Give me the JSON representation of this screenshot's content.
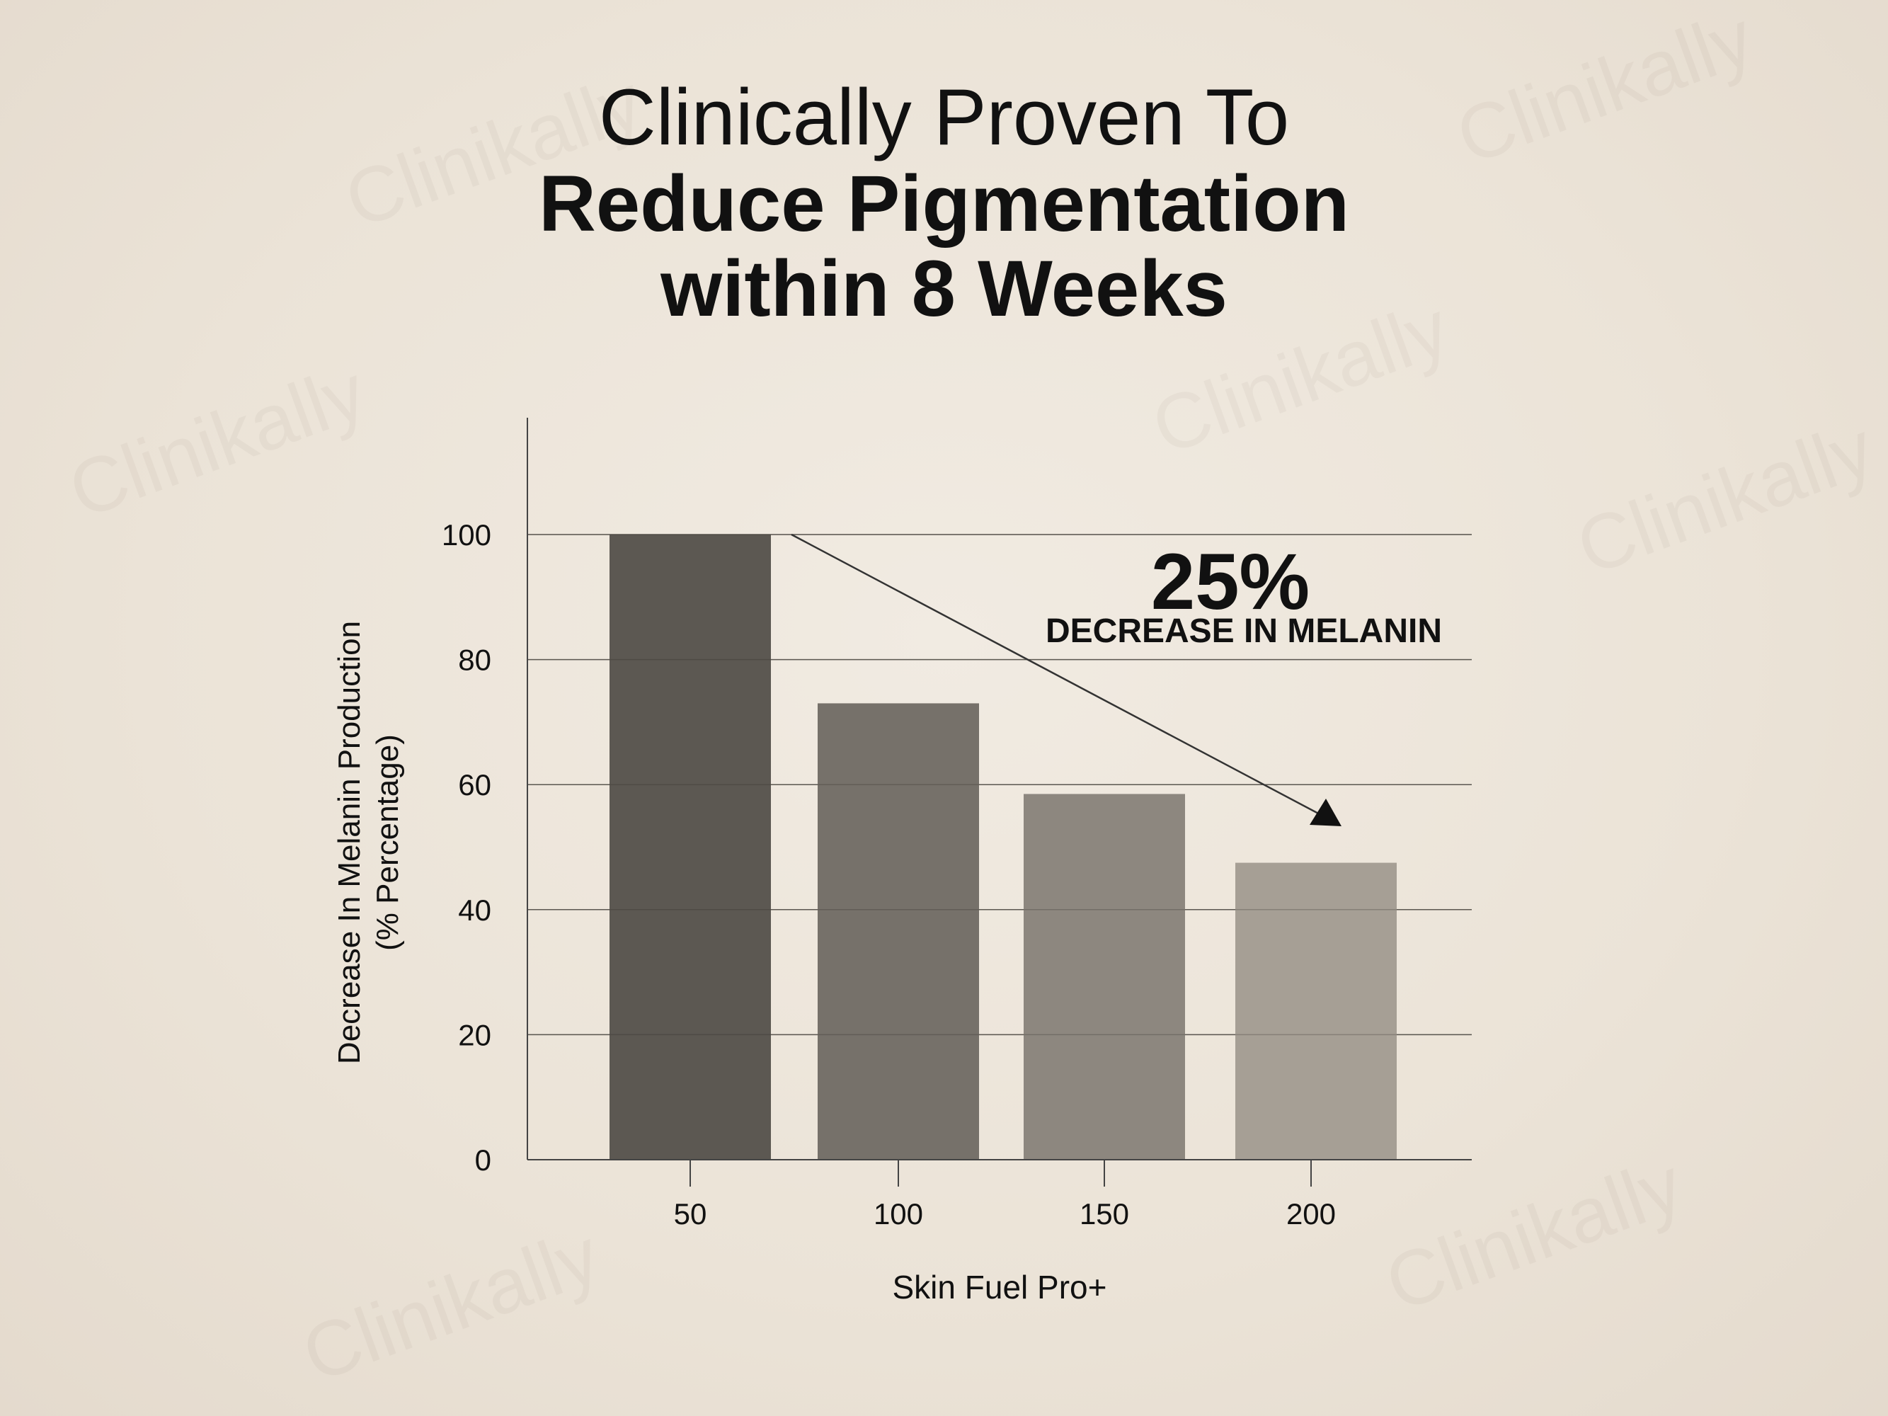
{
  "title": {
    "line1": "Clinically Proven To",
    "line2": "Reduce Pigmentation",
    "line3": "within 8 Weeks"
  },
  "watermark": "Clinikally",
  "chart_data": {
    "type": "bar",
    "categories": [
      "50",
      "100",
      "150",
      "200"
    ],
    "values": [
      100,
      73,
      58.5,
      47.5
    ],
    "xlabel": "Skin Fuel Pro+",
    "ylabel_line1": "Decrease In Melanin Production",
    "ylabel_line2": "(% Percentage)",
    "ylim": [
      0,
      120
    ],
    "yticks": [
      0,
      20,
      40,
      60,
      80,
      100
    ],
    "grid": true,
    "bar_colors": [
      "#5c5852",
      "#76716a",
      "#8d877f",
      "#a69f95"
    ],
    "annotation": {
      "value": "25%",
      "text": "DECREASE IN MELANIN"
    }
  }
}
